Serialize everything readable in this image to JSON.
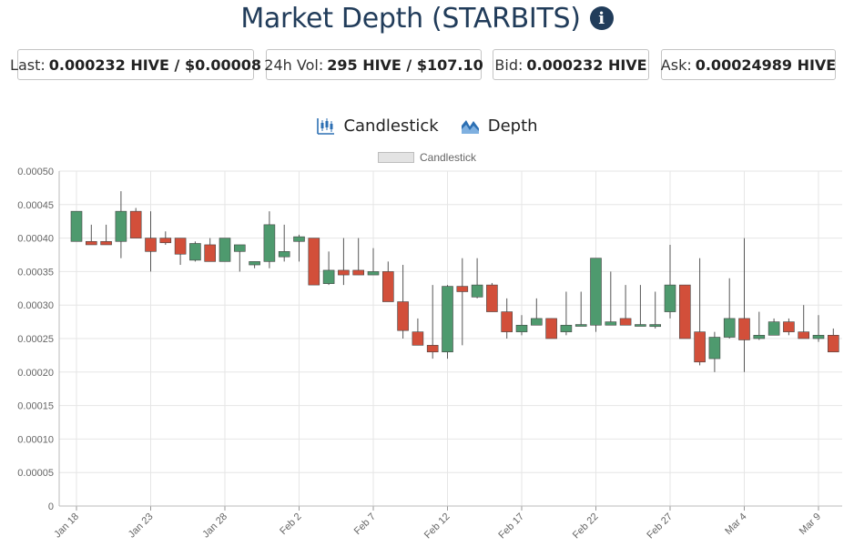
{
  "header": {
    "title": "Market Depth (STARBITS)",
    "info_icon": "info-circle-icon"
  },
  "stats": {
    "last_label": "Last:",
    "last_value": "0.000232 HIVE / $0.00008",
    "vol_label": "24h Vol:",
    "vol_value": "295 HIVE / $107.10",
    "bid_label": "Bid:",
    "bid_value": "0.000232 HIVE",
    "ask_label": "Ask:",
    "ask_value": "0.00024989 HIVE"
  },
  "toggles": {
    "candlestick_label": "Candlestick",
    "candlestick_icon": "candlestick-chart-icon",
    "depth_label": "Depth",
    "depth_icon": "area-chart-icon"
  },
  "colors": {
    "up": "#4e9a6e",
    "down": "#d24f3a",
    "wick": "#555555",
    "grid": "#e6e6e6",
    "icon_blue": "#2c6fb3"
  },
  "chart_data": {
    "type": "candlestick",
    "legend": [
      "Candlestick"
    ],
    "legend_position": "top-center",
    "grid": true,
    "ylim": [
      0,
      0.0005
    ],
    "y_ticks": [
      "0",
      "0.00005",
      "0.00010",
      "0.00015",
      "0.00020",
      "0.00025",
      "0.00030",
      "0.00035",
      "0.00040",
      "0.00045",
      "0.00050"
    ],
    "x_tick_labels": [
      {
        "label": "Jan 18",
        "index": 0
      },
      {
        "label": "Jan 23",
        "index": 5
      },
      {
        "label": "Jan 28",
        "index": 10
      },
      {
        "label": "Feb 2",
        "index": 15
      },
      {
        "label": "Feb 7",
        "index": 20
      },
      {
        "label": "Feb 12",
        "index": 25
      },
      {
        "label": "Feb 17",
        "index": 30
      },
      {
        "label": "Feb 22",
        "index": 35
      },
      {
        "label": "Feb 27",
        "index": 40
      },
      {
        "label": "Mar 4",
        "index": 45
      },
      {
        "label": "Mar 9",
        "index": 50
      }
    ],
    "candles": [
      {
        "date": "Jan 18",
        "o": 0.000395,
        "h": 0.00044,
        "l": 0.000395,
        "c": 0.00044
      },
      {
        "date": "Jan 19",
        "o": 0.000395,
        "h": 0.00042,
        "l": 0.00039,
        "c": 0.00039
      },
      {
        "date": "Jan 20",
        "o": 0.000395,
        "h": 0.00042,
        "l": 0.00039,
        "c": 0.00039
      },
      {
        "date": "Jan 21",
        "o": 0.000395,
        "h": 0.00047,
        "l": 0.00037,
        "c": 0.00044
      },
      {
        "date": "Jan 22",
        "o": 0.00044,
        "h": 0.000445,
        "l": 0.0004,
        "c": 0.0004
      },
      {
        "date": "Jan 23",
        "o": 0.0004,
        "h": 0.00044,
        "l": 0.00035,
        "c": 0.00038
      },
      {
        "date": "Jan 24",
        "o": 0.0004,
        "h": 0.00041,
        "l": 0.00039,
        "c": 0.000393
      },
      {
        "date": "Jan 25",
        "o": 0.0004,
        "h": 0.0004,
        "l": 0.00036,
        "c": 0.000376
      },
      {
        "date": "Jan 26",
        "o": 0.000367,
        "h": 0.000395,
        "l": 0.000365,
        "c": 0.000392
      },
      {
        "date": "Jan 27",
        "o": 0.00039,
        "h": 0.0004,
        "l": 0.000365,
        "c": 0.000365
      },
      {
        "date": "Jan 28",
        "o": 0.000365,
        "h": 0.0004,
        "l": 0.000365,
        "c": 0.0004
      },
      {
        "date": "Jan 29",
        "o": 0.00038,
        "h": 0.00039,
        "l": 0.00035,
        "c": 0.00039
      },
      {
        "date": "Jan 30",
        "o": 0.00036,
        "h": 0.000365,
        "l": 0.000355,
        "c": 0.000365
      },
      {
        "date": "Jan 31",
        "o": 0.000365,
        "h": 0.00044,
        "l": 0.000355,
        "c": 0.00042
      },
      {
        "date": "Feb 1",
        "o": 0.000372,
        "h": 0.00042,
        "l": 0.000365,
        "c": 0.00038
      },
      {
        "date": "Feb 2",
        "o": 0.000395,
        "h": 0.000405,
        "l": 0.000365,
        "c": 0.000402
      },
      {
        "date": "Feb 3",
        "o": 0.0004,
        "h": 0.0004,
        "l": 0.00033,
        "c": 0.00033
      },
      {
        "date": "Feb 4",
        "o": 0.000332,
        "h": 0.00038,
        "l": 0.00033,
        "c": 0.000352
      },
      {
        "date": "Feb 5",
        "o": 0.000352,
        "h": 0.0004,
        "l": 0.00033,
        "c": 0.000345
      },
      {
        "date": "Feb 6",
        "o": 0.000352,
        "h": 0.0004,
        "l": 0.000345,
        "c": 0.000345
      },
      {
        "date": "Feb 7",
        "o": 0.000345,
        "h": 0.000385,
        "l": 0.000345,
        "c": 0.00035
      },
      {
        "date": "Feb 8",
        "o": 0.00035,
        "h": 0.000365,
        "l": 0.000305,
        "c": 0.000305
      },
      {
        "date": "Feb 9",
        "o": 0.000305,
        "h": 0.00036,
        "l": 0.00025,
        "c": 0.000262
      },
      {
        "date": "Feb 10",
        "o": 0.00026,
        "h": 0.00028,
        "l": 0.00024,
        "c": 0.00024
      },
      {
        "date": "Feb 11",
        "o": 0.00024,
        "h": 0.00033,
        "l": 0.00022,
        "c": 0.00023
      },
      {
        "date": "Feb 12",
        "o": 0.00023,
        "h": 0.00033,
        "l": 0.00022,
        "c": 0.000328
      },
      {
        "date": "Feb 13",
        "o": 0.000328,
        "h": 0.00037,
        "l": 0.00024,
        "c": 0.00032
      },
      {
        "date": "Feb 14",
        "o": 0.000312,
        "h": 0.00037,
        "l": 0.00031,
        "c": 0.00033
      },
      {
        "date": "Feb 15",
        "o": 0.00033,
        "h": 0.000333,
        "l": 0.00029,
        "c": 0.00029
      },
      {
        "date": "Feb 16",
        "o": 0.00029,
        "h": 0.00031,
        "l": 0.00025,
        "c": 0.00026
      },
      {
        "date": "Feb 17",
        "o": 0.00026,
        "h": 0.000285,
        "l": 0.000255,
        "c": 0.00027
      },
      {
        "date": "Feb 18",
        "o": 0.00027,
        "h": 0.00031,
        "l": 0.00027,
        "c": 0.00028
      },
      {
        "date": "Feb 19",
        "o": 0.00028,
        "h": 0.00028,
        "l": 0.00025,
        "c": 0.00025
      },
      {
        "date": "Feb 20",
        "o": 0.00026,
        "h": 0.00032,
        "l": 0.000255,
        "c": 0.00027
      },
      {
        "date": "Feb 21",
        "o": 0.00027,
        "h": 0.00032,
        "l": 0.00027,
        "c": 0.000271
      },
      {
        "date": "Feb 22",
        "o": 0.00027,
        "h": 0.00037,
        "l": 0.00026,
        "c": 0.00037
      },
      {
        "date": "Feb 23",
        "o": 0.00027,
        "h": 0.00035,
        "l": 0.00027,
        "c": 0.000275
      },
      {
        "date": "Feb 24",
        "o": 0.00028,
        "h": 0.00033,
        "l": 0.00027,
        "c": 0.00027
      },
      {
        "date": "Feb 25",
        "o": 0.00027,
        "h": 0.00033,
        "l": 0.00027,
        "c": 0.000271
      },
      {
        "date": "Feb 26",
        "o": 0.000268,
        "h": 0.00032,
        "l": 0.000265,
        "c": 0.000271
      },
      {
        "date": "Feb 27",
        "o": 0.00029,
        "h": 0.00039,
        "l": 0.00028,
        "c": 0.00033
      },
      {
        "date": "Feb 28",
        "o": 0.00033,
        "h": 0.00033,
        "l": 0.00025,
        "c": 0.00025
      },
      {
        "date": "Mar 1",
        "o": 0.00026,
        "h": 0.00037,
        "l": 0.00021,
        "c": 0.000215
      },
      {
        "date": "Mar 2",
        "o": 0.00022,
        "h": 0.00026,
        "l": 0.0002,
        "c": 0.000252
      },
      {
        "date": "Mar 3",
        "o": 0.000252,
        "h": 0.00034,
        "l": 0.00025,
        "c": 0.00028
      },
      {
        "date": "Mar 4",
        "o": 0.00028,
        "h": 0.0004,
        "l": 0.0002,
        "c": 0.000248
      },
      {
        "date": "Mar 5",
        "o": 0.00025,
        "h": 0.00029,
        "l": 0.000248,
        "c": 0.000255
      },
      {
        "date": "Mar 6",
        "o": 0.000255,
        "h": 0.00028,
        "l": 0.000255,
        "c": 0.000275
      },
      {
        "date": "Mar 7",
        "o": 0.000275,
        "h": 0.00028,
        "l": 0.000255,
        "c": 0.00026
      },
      {
        "date": "Mar 8",
        "o": 0.00026,
        "h": 0.0003,
        "l": 0.00025,
        "c": 0.00025
      },
      {
        "date": "Mar 9",
        "o": 0.00025,
        "h": 0.000285,
        "l": 0.000245,
        "c": 0.000255
      },
      {
        "date": "Mar 10",
        "o": 0.000255,
        "h": 0.000265,
        "l": 0.00023,
        "c": 0.00023
      }
    ]
  }
}
